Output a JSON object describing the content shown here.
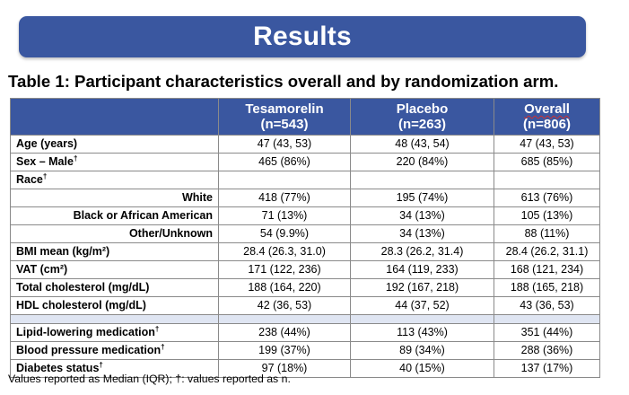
{
  "banner": {
    "title": "Results"
  },
  "table": {
    "title": "Table 1: Participant characteristics overall and by randomization arm.",
    "columns": [
      {
        "name": "Tesamorelin",
        "n": "(n=543)"
      },
      {
        "name": "Placebo",
        "n": "(n=263)"
      },
      {
        "name": "Overall",
        "n": "(n=806)"
      }
    ],
    "rows": [
      {
        "label": "Age (years)",
        "sup": "",
        "values": [
          "47 (43, 53)",
          "48 (43, 54)",
          "47 (43, 53)"
        ]
      },
      {
        "label": "Sex – Male",
        "sup": "†",
        "values": [
          "465 (86%)",
          "220 (84%)",
          "685 (85%)"
        ]
      },
      {
        "label": "Race",
        "sup": "†",
        "values": [
          "",
          "",
          ""
        ]
      },
      {
        "label": "White",
        "sup": "",
        "values": [
          "418 (77%)",
          "195 (74%)",
          "613 (76%)"
        ]
      },
      {
        "label": "Black or African American",
        "sup": "",
        "values": [
          "71 (13%)",
          "34 (13%)",
          "105 (13%)"
        ]
      },
      {
        "label": "Other/Unknown",
        "sup": "",
        "values": [
          "54 (9.9%)",
          "34 (13%)",
          "88 (11%)"
        ]
      },
      {
        "label": "BMI mean (kg/m²)",
        "sup": "",
        "values": [
          "28.4 (26.3, 31.0)",
          "28.3 (26.2, 31.4)",
          "28.4 (26.2, 31.1)"
        ]
      },
      {
        "label": "VAT (cm²)",
        "sup": "",
        "values": [
          "171 (122, 236)",
          "164 (119, 233)",
          "168 (121, 234)"
        ]
      },
      {
        "label": "Total cholesterol (mg/dL)",
        "sup": "",
        "values": [
          "188 (164, 220)",
          "192 (167, 218)",
          "188 (165, 218)"
        ]
      },
      {
        "label": "HDL cholesterol (mg/dL)",
        "sup": "",
        "values": [
          "42 (36, 53)",
          "44 (37, 52)",
          "43 (36, 53)"
        ]
      },
      {
        "label": "Lipid-lowering medication",
        "sup": "†",
        "values": [
          "238 (44%)",
          "113 (43%)",
          "351 (44%)"
        ]
      },
      {
        "label": "Blood pressure medication",
        "sup": "†",
        "values": [
          "199 (37%)",
          "89 (34%)",
          "288 (36%)"
        ]
      },
      {
        "label": "Diabetes status",
        "sup": "†",
        "values": [
          "97 (18%)",
          "40 (15%)",
          "137 (17%)"
        ]
      }
    ],
    "footnote": "Values reported as Median (IQR); †: values reported as n."
  }
}
